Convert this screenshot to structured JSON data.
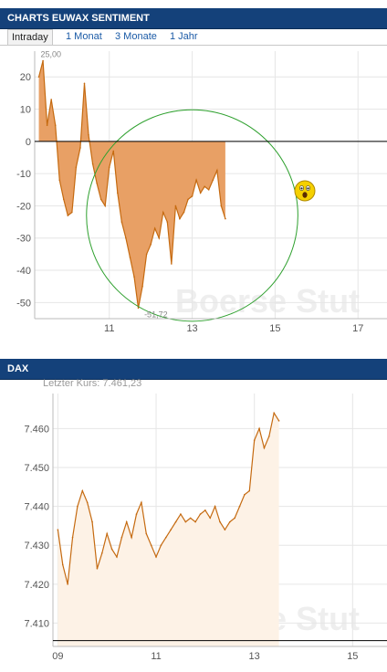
{
  "panels": {
    "sentiment": {
      "title": "CHARTS EUWAX SENTIMENT",
      "tabs": [
        {
          "label": "Intraday",
          "active": true
        },
        {
          "label": "1 Monat",
          "active": false
        },
        {
          "label": "3 Monate",
          "active": false
        },
        {
          "label": "1 Jahr",
          "active": false
        }
      ]
    },
    "dax": {
      "title": "DAX",
      "last_price_label": "Letzter Kurs:",
      "last_price_value": "7.461,23"
    }
  },
  "watermark": "Boerse Stut",
  "colors": {
    "header_bg": "#14417a",
    "sentiment_fill": "#e8a065",
    "sentiment_line": "#c56a10",
    "dax_line": "#c56a10",
    "dax_fill": "#fdf2e6",
    "circle": "#2ea02e"
  },
  "icons": {
    "emoji": "surprised-face-icon"
  },
  "chart_data": [
    {
      "type": "area",
      "xlabel": "",
      "ylabel": "",
      "x_ticks": [
        "11",
        "13",
        "15",
        "17"
      ],
      "x_tick_values": [
        11,
        13,
        15,
        17
      ],
      "xlim": [
        9.2,
        17.7
      ],
      "y_ticks": [
        "20",
        "10",
        "0",
        "-10",
        "-20",
        "-30",
        "-40",
        "-50"
      ],
      "y_tick_values": [
        20,
        10,
        0,
        -10,
        -20,
        -30,
        -40,
        -50
      ],
      "ylim": [
        -55,
        28
      ],
      "annotations": [
        {
          "text": "25,00",
          "x": 9.3,
          "y": 25
        },
        {
          "text": "-51,72",
          "x": 11.8,
          "y": -51.72
        }
      ],
      "x": [
        9.3,
        9.4,
        9.5,
        9.6,
        9.7,
        9.8,
        9.9,
        10.0,
        10.1,
        10.2,
        10.3,
        10.4,
        10.5,
        10.6,
        10.7,
        10.8,
        10.9,
        11.0,
        11.1,
        11.2,
        11.3,
        11.4,
        11.5,
        11.6,
        11.7,
        11.8,
        11.9,
        12.0,
        12.1,
        12.2,
        12.3,
        12.4,
        12.5,
        12.6,
        12.7,
        12.8,
        12.9,
        13.0,
        13.1,
        13.2,
        13.3,
        13.4,
        13.5,
        13.6,
        13.7,
        13.8
      ],
      "values": [
        20,
        25,
        5,
        13,
        5,
        -12,
        -18,
        -23,
        -22,
        -8,
        -2,
        18,
        2,
        -7,
        -13,
        -18,
        -20,
        -8,
        -3,
        -16,
        -25,
        -30,
        -36,
        -42,
        -51.72,
        -45,
        -35,
        -32,
        -27,
        -30,
        -22,
        -25,
        -38,
        -20,
        -24,
        -22,
        -18,
        -17,
        -12,
        -16,
        -14,
        -15,
        -12,
        -9,
        -20,
        -24
      ],
      "circle": {
        "cx": 13.0,
        "cy": -23,
        "r": 2.55
      }
    },
    {
      "type": "area",
      "xlabel": "",
      "ylabel": "",
      "x_ticks": [
        "09",
        "11",
        "13",
        "15"
      ],
      "x_tick_values": [
        9,
        11,
        13,
        15
      ],
      "xlim": [
        8.9,
        15.7
      ],
      "y_ticks": [
        "7.460",
        "7.450",
        "7.440",
        "7.430",
        "7.420",
        "7.410"
      ],
      "y_tick_values": [
        7460,
        7450,
        7440,
        7430,
        7420,
        7410
      ],
      "ylim": [
        7404,
        7469
      ],
      "reference_line": 7405.5,
      "x": [
        9.0,
        9.1,
        9.2,
        9.3,
        9.4,
        9.5,
        9.6,
        9.7,
        9.8,
        9.9,
        10.0,
        10.1,
        10.2,
        10.3,
        10.4,
        10.5,
        10.6,
        10.7,
        10.8,
        10.9,
        11.0,
        11.1,
        11.2,
        11.3,
        11.4,
        11.5,
        11.6,
        11.7,
        11.8,
        11.9,
        12.0,
        12.1,
        12.2,
        12.3,
        12.4,
        12.5,
        12.6,
        12.7,
        12.8,
        12.9,
        13.0,
        13.1,
        13.2,
        13.3,
        13.4,
        13.5
      ],
      "values": [
        7434,
        7425,
        7420,
        7432,
        7440,
        7444,
        7441,
        7436,
        7424,
        7428,
        7433,
        7429,
        7427,
        7432,
        7436,
        7432,
        7438,
        7441,
        7433,
        7430,
        7427,
        7430,
        7432,
        7434,
        7436,
        7438,
        7436,
        7437,
        7436,
        7438,
        7439,
        7437,
        7440,
        7436,
        7434,
        7436,
        7437,
        7440,
        7443,
        7444,
        7457,
        7460,
        7455,
        7458,
        7464,
        7462
      ]
    }
  ]
}
